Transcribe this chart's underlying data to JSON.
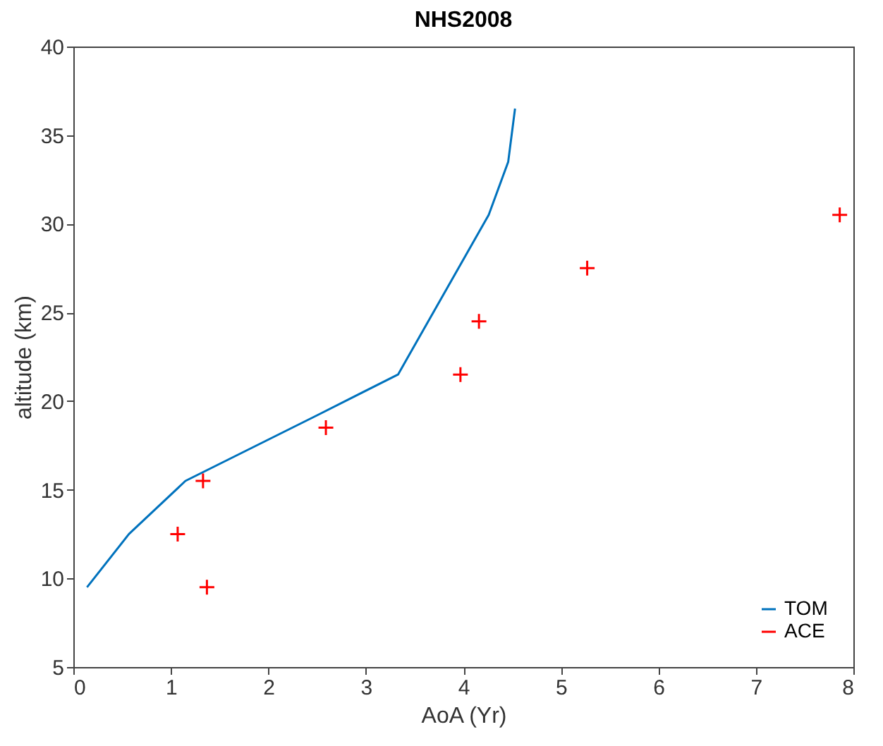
{
  "chart_data": {
    "type": "line",
    "title": "NHS2008",
    "xlabel": "AoA (Yr)",
    "ylabel": "altitude (km)",
    "xlim": [
      0,
      8
    ],
    "xticks": [
      0,
      1,
      2,
      3,
      4,
      5,
      6,
      7,
      8
    ],
    "ylim": [
      5,
      40
    ],
    "yticks": [
      5,
      10,
      15,
      20,
      25,
      30,
      35,
      40
    ],
    "grid": false,
    "legend": "bottom right",
    "series": [
      {
        "name": "TOM",
        "type": "line",
        "color": "#0072bd",
        "line_style": "solid",
        "x": [
          0.14,
          0.57,
          1.15,
          2.5,
          3.33,
          4.26,
          4.46,
          4.53
        ],
        "values": [
          9.5,
          12.5,
          15.5,
          19.2,
          21.5,
          30.5,
          33.5,
          36.5
        ]
      },
      {
        "name": "ACE",
        "type": "scatter",
        "color": "#ff0000",
        "marker": "cross",
        "x": [
          1.07,
          1.33,
          1.37,
          2.59,
          3.97,
          4.16,
          5.27,
          7.86
        ],
        "values": [
          12.5,
          15.5,
          9.5,
          18.5,
          21.5,
          24.5,
          27.5,
          30.5
        ]
      }
    ]
  }
}
